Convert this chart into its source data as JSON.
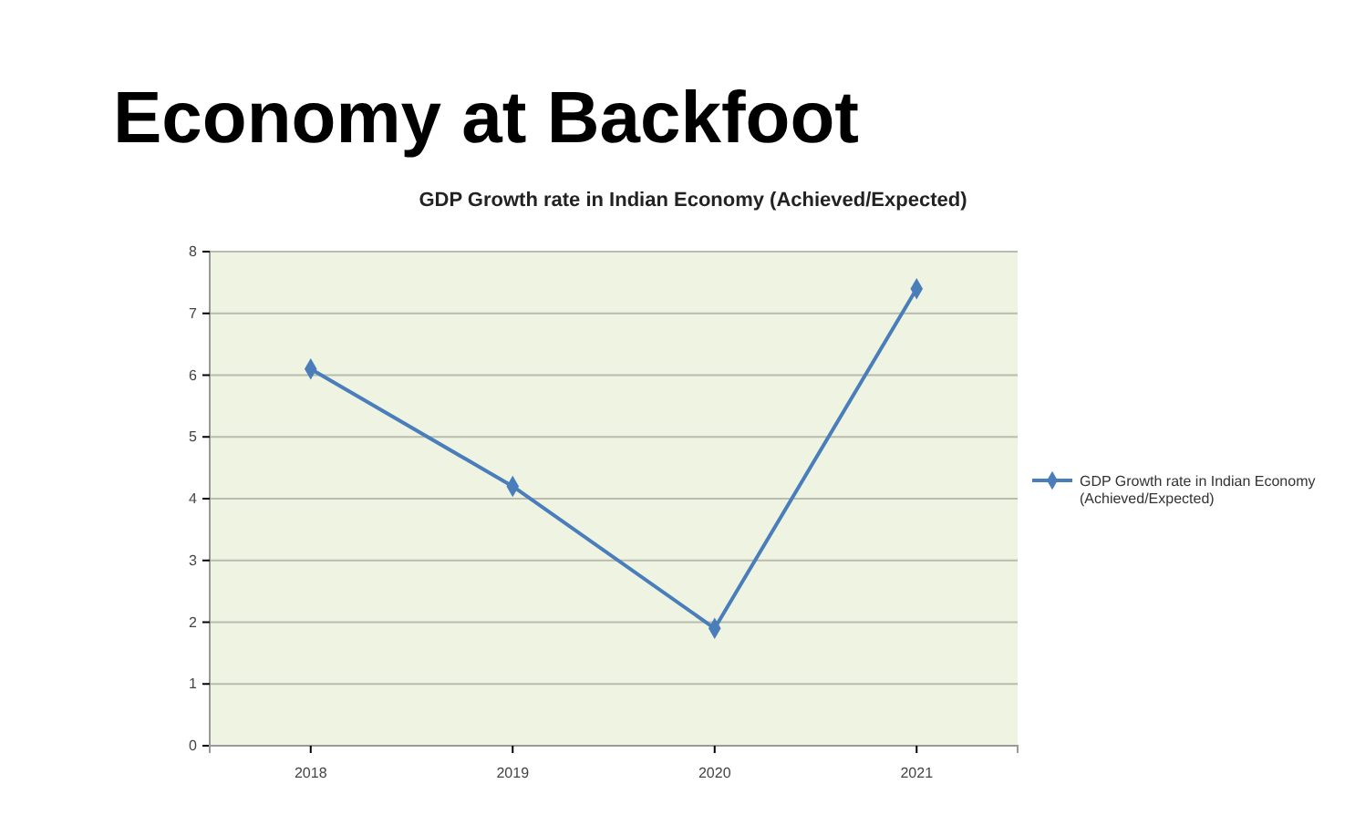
{
  "chart_data": {
    "type": "line",
    "title": "Economy at Backfoot",
    "subtitle": "GDP Growth rate in Indian Economy (Achieved/Expected)",
    "categories": [
      "2018",
      "2019",
      "2020",
      "2021"
    ],
    "series": [
      {
        "name": "GDP Growth rate in Indian Economy (Achieved/Expected)",
        "color": "#4a7ebb",
        "values": [
          6.1,
          4.2,
          1.9,
          7.4
        ]
      }
    ],
    "ylim": [
      0,
      8
    ],
    "yticks": [
      0,
      1,
      2,
      3,
      4,
      5,
      6,
      7,
      8
    ],
    "grid": "y",
    "legend": "right",
    "marker": "diamond",
    "line_style": "solid"
  }
}
